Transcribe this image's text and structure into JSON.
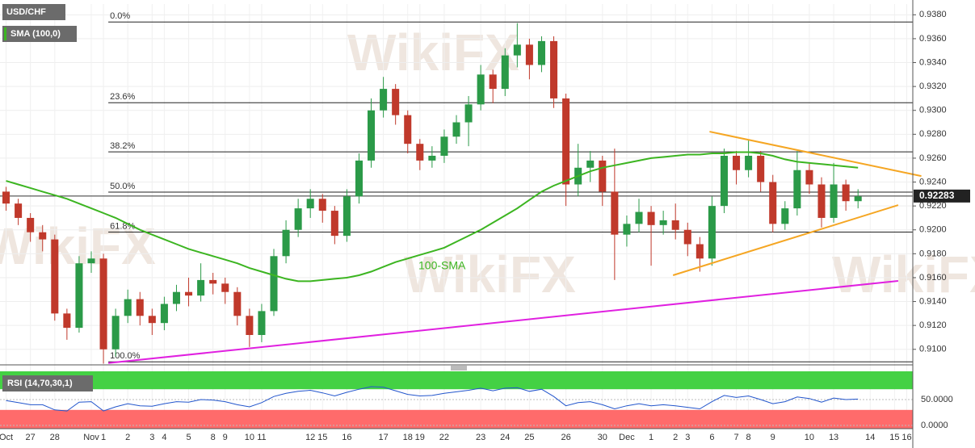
{
  "chart_data": {
    "type": "candlestick",
    "symbol": "USD/CHF",
    "watermark": "WikiFX",
    "categories": [
      "Oct",
      null,
      "27",
      null,
      "28",
      null,
      null,
      "Nov",
      "1",
      null,
      "2",
      null,
      "3",
      "4",
      null,
      "5",
      null,
      "8",
      "9",
      null,
      "10",
      "11",
      null,
      null,
      null,
      "12",
      "15",
      null,
      "16",
      null,
      null,
      "17",
      null,
      "18",
      "19",
      null,
      "22",
      null,
      null,
      "23",
      null,
      "24",
      null,
      "25",
      null,
      null,
      "26",
      null,
      null,
      "30",
      null,
      "Dec",
      null,
      "1",
      null,
      "2",
      "3",
      null,
      "6",
      null,
      "7",
      "8",
      null,
      "9",
      null,
      null,
      "10",
      null,
      "13",
      null,
      null,
      "14",
      null,
      "15",
      "16"
    ],
    "open": [
      0.9232,
      0.9222,
      0.921,
      0.9198,
      0.9192,
      0.913,
      0.9118,
      0.9172,
      0.9176,
      0.91,
      0.9128,
      0.9142,
      0.9128,
      0.9122,
      0.9138,
      0.9148,
      0.9145,
      0.9158,
      0.9155,
      0.9148,
      0.9128,
      0.9112,
      0.9132,
      0.9178,
      0.92,
      0.9218,
      0.9226,
      0.9216,
      0.9195,
      0.9228,
      0.9258,
      0.93,
      0.9318,
      0.9296,
      0.9272,
      0.9258,
      0.9262,
      0.9278,
      0.929,
      0.9305,
      0.933,
      0.9318,
      0.9346,
      0.9355,
      0.9338,
      0.9358,
      0.931,
      0.9238,
      0.9252,
      0.9258,
      0.9232,
      0.9196,
      0.9205,
      0.9215,
      0.9204,
      0.9208,
      0.92,
      0.9188,
      0.9176,
      0.922,
      0.9262,
      0.925,
      0.9262,
      0.924,
      0.9205,
      0.9218,
      0.925,
      0.9238,
      0.921,
      0.9238,
      0.9224,
      null,
      null,
      null,
      null
    ],
    "high": [
      0.9236,
      0.9226,
      0.9214,
      0.9204,
      0.9196,
      0.9134,
      0.9178,
      0.9182,
      0.918,
      0.9134,
      0.915,
      0.9148,
      0.9134,
      0.9144,
      0.9154,
      0.916,
      0.9172,
      0.9164,
      0.916,
      0.9152,
      0.9134,
      0.9138,
      0.9184,
      0.9208,
      0.9226,
      0.9234,
      0.923,
      0.922,
      0.9234,
      0.9264,
      0.931,
      0.9328,
      0.9322,
      0.93,
      0.9276,
      0.927,
      0.9284,
      0.9296,
      0.9312,
      0.9338,
      0.9334,
      0.9352,
      0.9373,
      0.936,
      0.9362,
      0.9362,
      0.9314,
      0.9272,
      0.9266,
      0.9262,
      0.9268,
      0.9212,
      0.9226,
      0.922,
      0.9216,
      0.9222,
      0.9206,
      0.9194,
      0.9228,
      0.9268,
      0.9266,
      0.9275,
      0.9266,
      0.9246,
      0.9224,
      0.9266,
      0.9256,
      0.9244,
      0.9256,
      0.9242,
      0.9234,
      null,
      null,
      null,
      null
    ],
    "low": [
      0.9216,
      0.9204,
      0.919,
      0.9182,
      0.9124,
      0.9108,
      0.9114,
      0.9164,
      0.9088,
      0.9094,
      0.9122,
      0.912,
      0.9112,
      0.9116,
      0.9132,
      0.9136,
      0.914,
      0.9146,
      0.9138,
      0.912,
      0.9102,
      0.9106,
      0.9128,
      0.9172,
      0.9194,
      0.921,
      0.9206,
      0.9188,
      0.919,
      0.9222,
      0.9252,
      0.9294,
      0.9288,
      0.9264,
      0.925,
      0.9252,
      0.9256,
      0.9272,
      0.927,
      0.93,
      0.9306,
      0.9312,
      0.9336,
      0.9326,
      0.9332,
      0.9302,
      0.922,
      0.9228,
      0.924,
      0.922,
      0.9158,
      0.9186,
      0.9198,
      0.917,
      0.9196,
      0.9192,
      0.9178,
      0.9165,
      0.917,
      0.9214,
      0.9238,
      0.9244,
      0.9232,
      0.9198,
      0.92,
      0.9212,
      0.923,
      0.9202,
      0.9206,
      0.9216,
      0.9218,
      null,
      null,
      null,
      null
    ],
    "close": [
      0.9222,
      0.921,
      0.9198,
      0.9192,
      0.913,
      0.9118,
      0.9172,
      0.9176,
      0.91,
      0.9128,
      0.9142,
      0.9128,
      0.9122,
      0.9138,
      0.9148,
      0.9145,
      0.9158,
      0.9155,
      0.9148,
      0.9128,
      0.9112,
      0.9132,
      0.9178,
      0.92,
      0.9218,
      0.9226,
      0.9216,
      0.9195,
      0.9228,
      0.9258,
      0.93,
      0.9318,
      0.9296,
      0.9272,
      0.9258,
      0.9262,
      0.9278,
      0.929,
      0.9305,
      0.933,
      0.9318,
      0.9346,
      0.9355,
      0.9338,
      0.9358,
      0.931,
      0.9238,
      0.9252,
      0.9258,
      0.9232,
      0.9196,
      0.9205,
      0.9215,
      0.9204,
      0.9208,
      0.92,
      0.9188,
      0.9176,
      0.922,
      0.9262,
      0.925,
      0.9262,
      0.924,
      0.9205,
      0.9218,
      0.925,
      0.9238,
      0.921,
      0.9238,
      0.9224,
      0.9228,
      null,
      null,
      null,
      null
    ],
    "up_color": "#2b9a48",
    "down_color": "#c0392b",
    "ylim": [
      0.9087,
      0.9389
    ],
    "yticks": [
      {
        "value": 0.91,
        "label": "0.9100"
      },
      {
        "value": 0.912,
        "label": "0.9120"
      },
      {
        "value": 0.914,
        "label": "0.9140"
      },
      {
        "value": 0.916,
        "label": "0.9160"
      },
      {
        "value": 0.918,
        "label": "0.9180"
      },
      {
        "value": 0.92,
        "label": "0.9200"
      },
      {
        "value": 0.922,
        "label": "0.9220"
      },
      {
        "value": 0.924,
        "label": "0.9240"
      },
      {
        "value": 0.926,
        "label": "0.9260"
      },
      {
        "value": 0.928,
        "label": "0.9280"
      },
      {
        "value": 0.93,
        "label": "0.9300"
      },
      {
        "value": 0.932,
        "label": "0.9320"
      },
      {
        "value": 0.934,
        "label": "0.9340"
      },
      {
        "value": 0.936,
        "label": "0.9360"
      },
      {
        "value": 0.938,
        "label": "0.9380"
      }
    ],
    "grid": true,
    "last_price": 0.92283,
    "sma": {
      "name": "SMA (100,0)",
      "annotation": "100-SMA",
      "color": "#3cb521",
      "values": [
        0.9241,
        0.9238,
        0.9235,
        0.9232,
        0.9229,
        0.9226,
        0.9222,
        0.9218,
        0.9214,
        0.921,
        0.9205,
        0.92,
        0.9196,
        0.9192,
        0.9188,
        0.9184,
        0.9181,
        0.9178,
        0.9175,
        0.9172,
        0.9168,
        0.9165,
        0.9162,
        0.9159,
        0.9157,
        0.9157,
        0.9158,
        0.9159,
        0.916,
        0.9162,
        0.9165,
        0.9169,
        0.9173,
        0.9176,
        0.9179,
        0.9182,
        0.9185,
        0.919,
        0.9195,
        0.92,
        0.9206,
        0.9212,
        0.9218,
        0.9225,
        0.9232,
        0.9237,
        0.9241,
        0.9245,
        0.9249,
        0.9252,
        0.9254,
        0.9256,
        0.9258,
        0.926,
        0.9261,
        0.9262,
        0.9263,
        0.9263,
        0.9264,
        0.9264,
        0.9265,
        0.9265,
        0.9264,
        0.9262,
        0.9259,
        0.9257,
        0.9256,
        0.9255,
        0.9254,
        0.9253,
        0.9252,
        null,
        null,
        null,
        null
      ]
    },
    "fib_levels": [
      {
        "label": "0.0%",
        "value": 0.9374
      },
      {
        "label": "23.6%",
        "value": 0.93064
      },
      {
        "label": "38.2%",
        "value": 0.92653
      },
      {
        "label": "50.0%",
        "value": 0.92316
      },
      {
        "label": "61.8%",
        "value": 0.91981
      },
      {
        "label": "100.0%",
        "value": 0.90895
      }
    ],
    "trendlines": [
      {
        "color": "#f5a623",
        "x": [
          57.8,
          75.2
        ],
        "y": [
          0.92822,
          0.9245
        ]
      },
      {
        "color": "#f5a623",
        "x": [
          54.8,
          73.3
        ],
        "y": [
          0.9162,
          0.92207
        ]
      },
      {
        "color": "#e020e0",
        "x": [
          8.4,
          73.3
        ],
        "y": [
          0.90885,
          0.91573
        ]
      }
    ],
    "rsi": {
      "name": "RSI (14,70,30,1)",
      "color": "#2255cc",
      "upper": 70,
      "lower": 30,
      "upper_color": "#44d144",
      "lower_color": "#ff6b6b",
      "ylim": [
        0,
        100
      ],
      "yticks": [
        {
          "value": 0,
          "label": "0.0000"
        },
        {
          "value": 50,
          "label": "50.0000"
        }
      ],
      "values": [
        48,
        44,
        40,
        40,
        30,
        28,
        45,
        46,
        28,
        36,
        42,
        38,
        37,
        42,
        46,
        45,
        50,
        49,
        46,
        40,
        36,
        44,
        56,
        62,
        66,
        68,
        63,
        57,
        64,
        70,
        75,
        74,
        67,
        60,
        57,
        58,
        62,
        65,
        68,
        72,
        67,
        72,
        73,
        66,
        70,
        56,
        38,
        44,
        46,
        40,
        32,
        38,
        42,
        38,
        40,
        38,
        35,
        32,
        46,
        58,
        54,
        57,
        50,
        42,
        46,
        55,
        52,
        45,
        53,
        50,
        51,
        null,
        null,
        null,
        null
      ]
    }
  }
}
